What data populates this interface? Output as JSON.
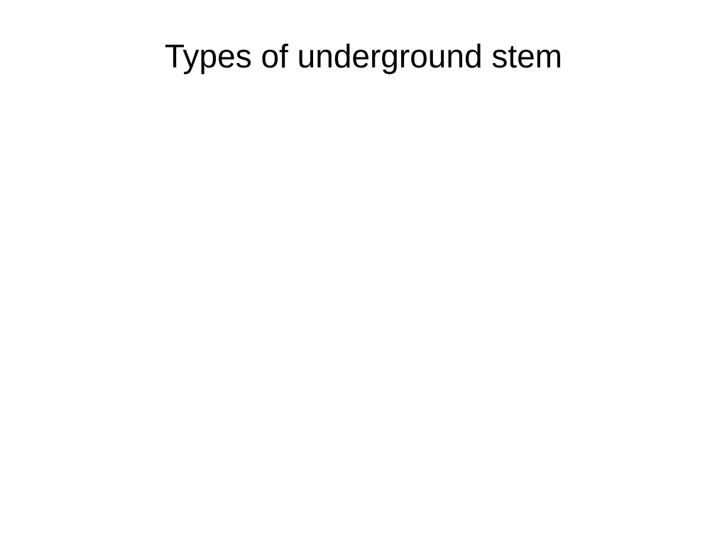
{
  "slide": {
    "title": "Types of underground stem",
    "title_fontsize": 46,
    "title_color": "#000000",
    "background_color": "#ffffff",
    "font_family": "Verdana, Geneva, sans-serif",
    "title_align": "center",
    "title_padding_top": 52
  }
}
